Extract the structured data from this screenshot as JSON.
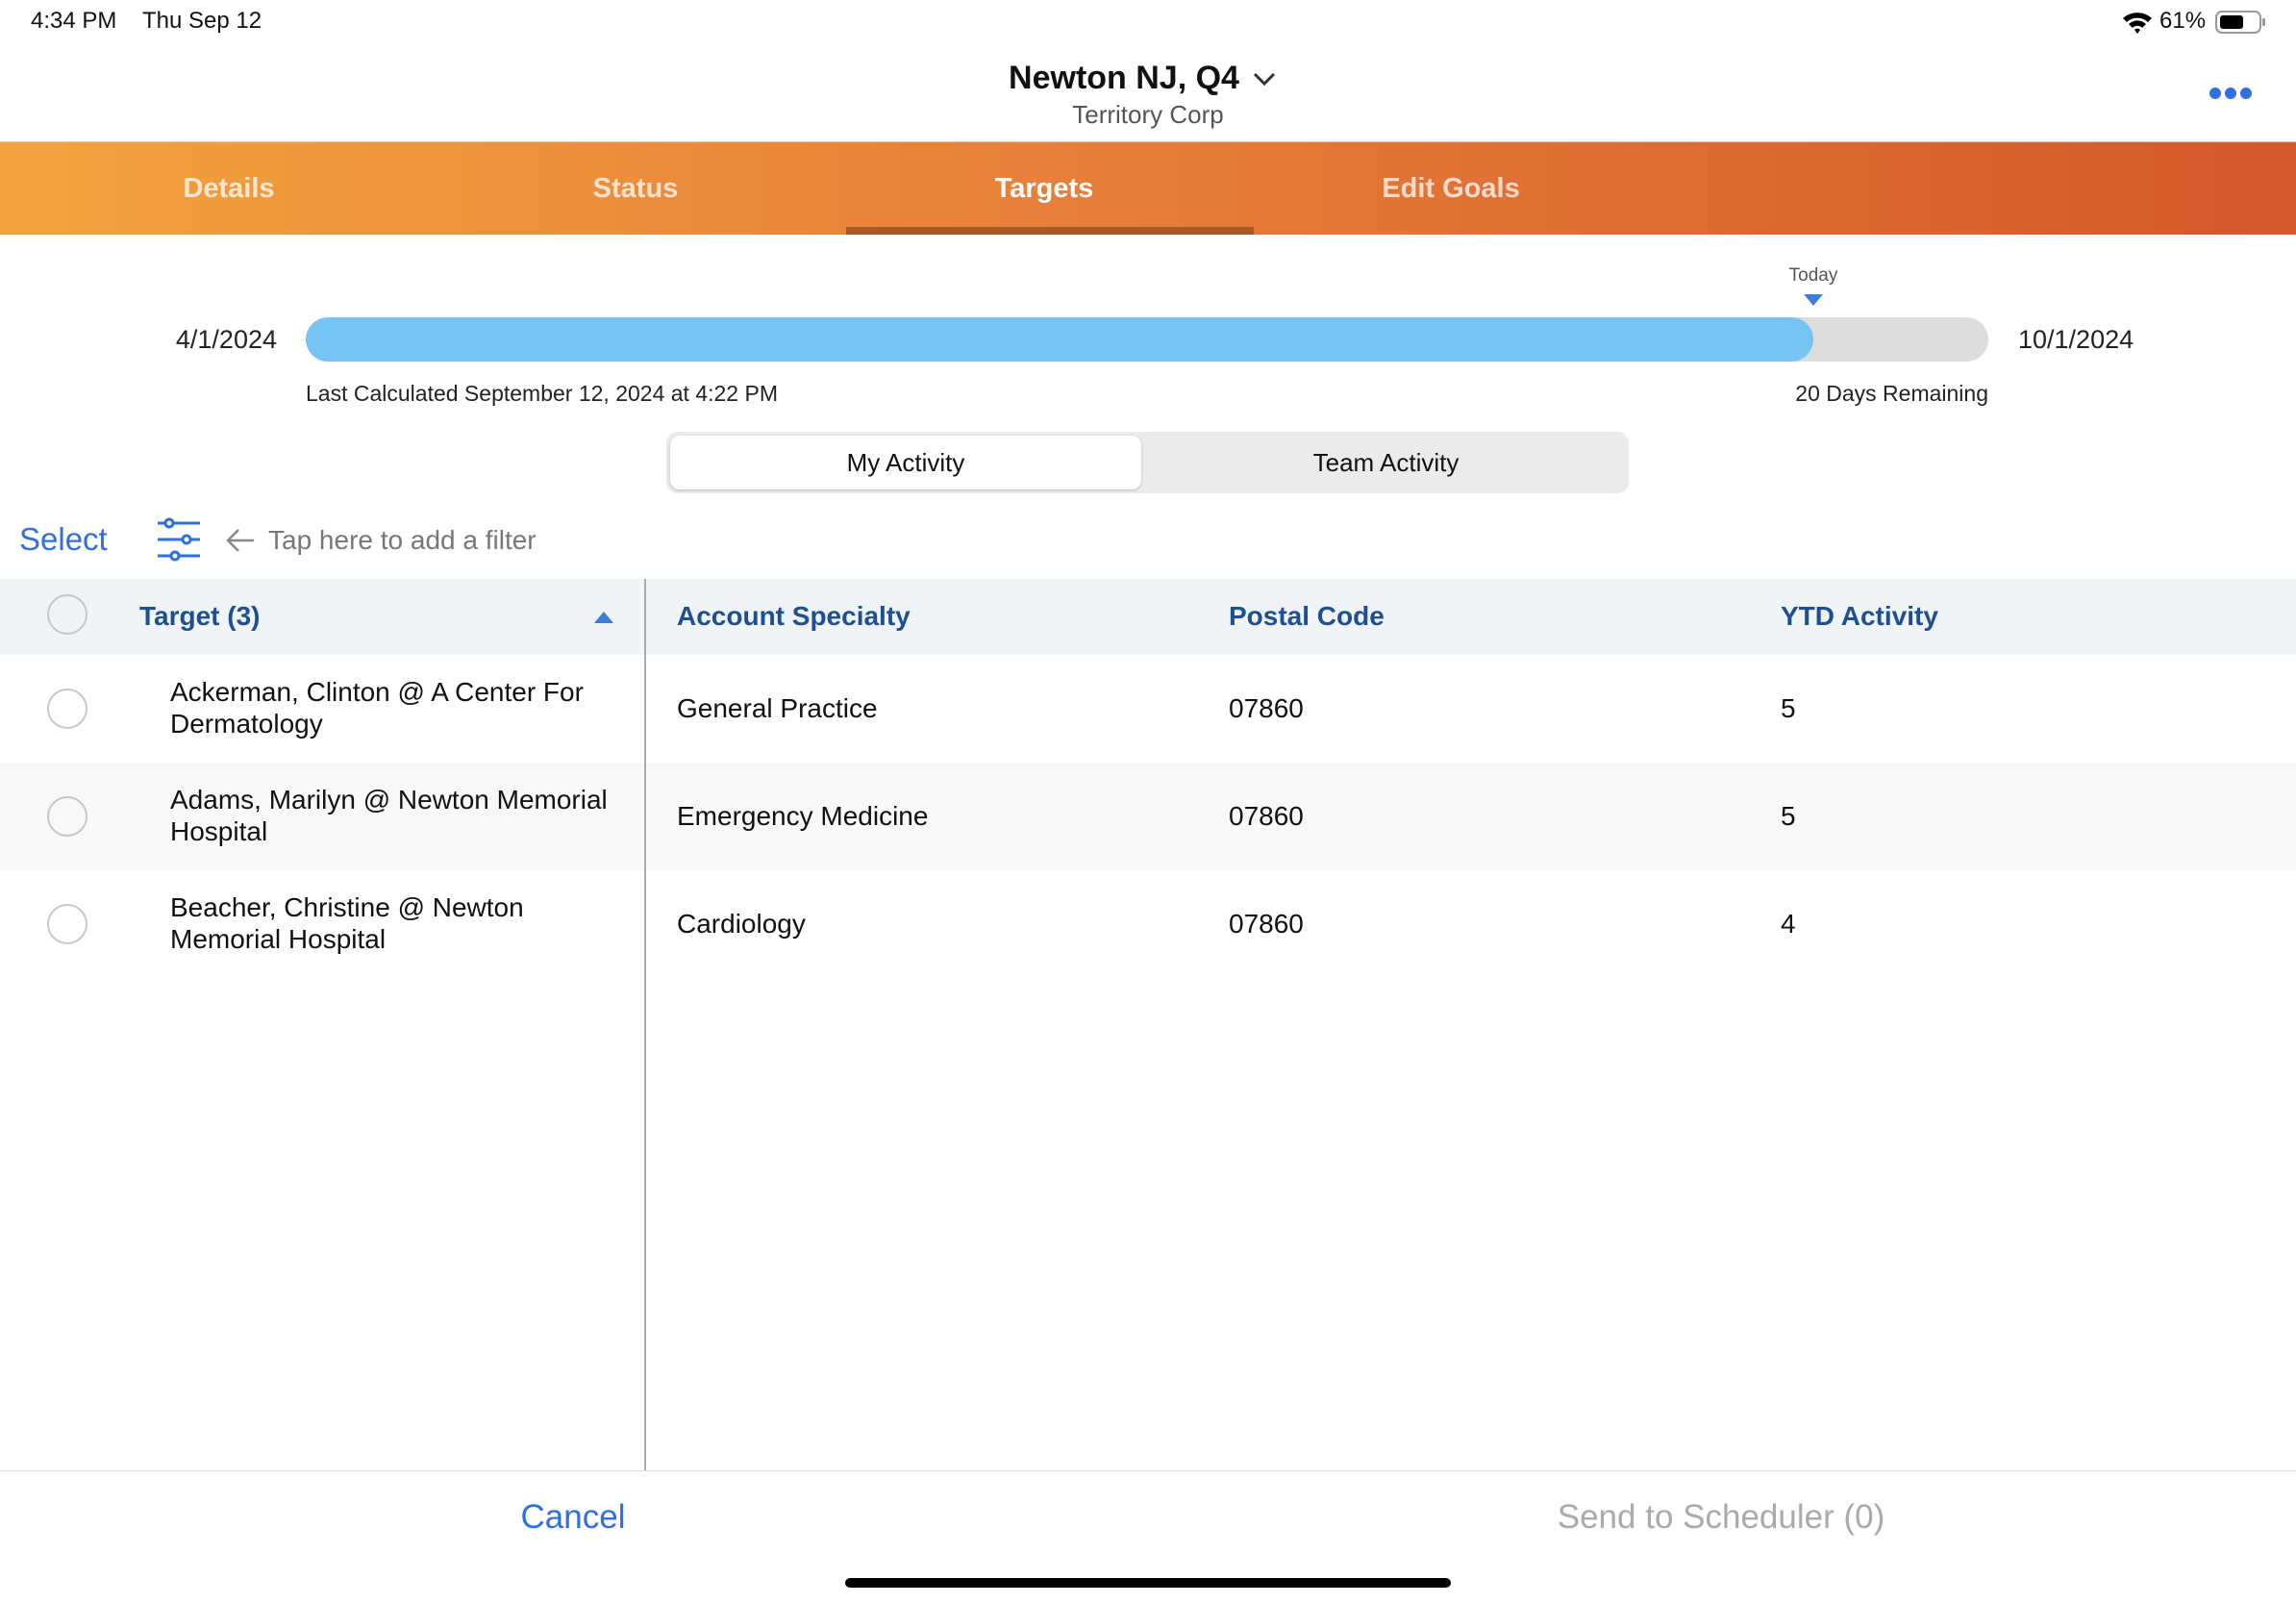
{
  "status_bar": {
    "time": "4:34 PM",
    "date": "Thu Sep 12",
    "battery": "61%"
  },
  "header": {
    "title": "Newton NJ, Q4",
    "subtitle": "Territory Corp"
  },
  "tabs": [
    "Details",
    "Status",
    "Targets",
    "Edit Goals"
  ],
  "progress": {
    "start_date": "4/1/2024",
    "end_date": "10/1/2024",
    "today_label": "Today",
    "last_calculated": "Last Calculated September 12, 2024 at 4:22 PM",
    "remaining": "20 Days Remaining"
  },
  "segments": [
    "My Activity",
    "Team Activity"
  ],
  "filter": {
    "select": "Select",
    "hint": "Tap here to add a filter"
  },
  "table": {
    "columns": [
      "Target (3)",
      "Account Specialty",
      "Postal Code",
      "YTD Activity"
    ],
    "rows": [
      [
        "Ackerman, Clinton @ A Center For Dermatology",
        "General Practice",
        "07860",
        5
      ],
      [
        "Adams, Marilyn @ Newton Memorial Hospital",
        "Emergency Medicine",
        "07860",
        5
      ],
      [
        "Beacher, Christine @ Newton Memorial Hospital",
        "Cardiology",
        "07860",
        4
      ]
    ]
  },
  "footer": {
    "cancel": "Cancel",
    "send": "Send to Scheduler (0)"
  }
}
